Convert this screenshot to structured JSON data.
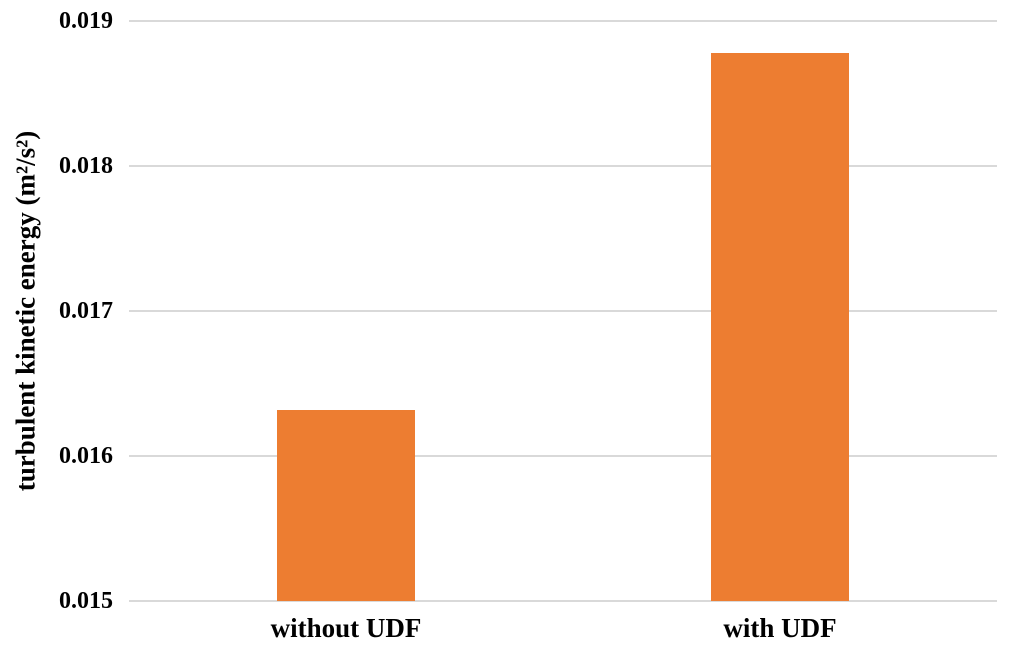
{
  "chart_data": {
    "type": "bar",
    "title": "",
    "categories": [
      "without UDF",
      "with UDF"
    ],
    "values": [
      0.01632,
      0.01878
    ],
    "xlabel": "",
    "ylabel": "turbulent kinetic energy (m²/s²)",
    "ylim": [
      0.015,
      0.019
    ],
    "yticks": [
      0.015,
      0.016,
      0.017,
      0.018,
      0.019
    ],
    "ytick_decimals": 3,
    "grid": "horizontal",
    "legend": "none",
    "colors": {
      "bar": "#ed7d31",
      "gridline": "#d9d9d9",
      "text": "#000000",
      "background": "#ffffff"
    }
  }
}
